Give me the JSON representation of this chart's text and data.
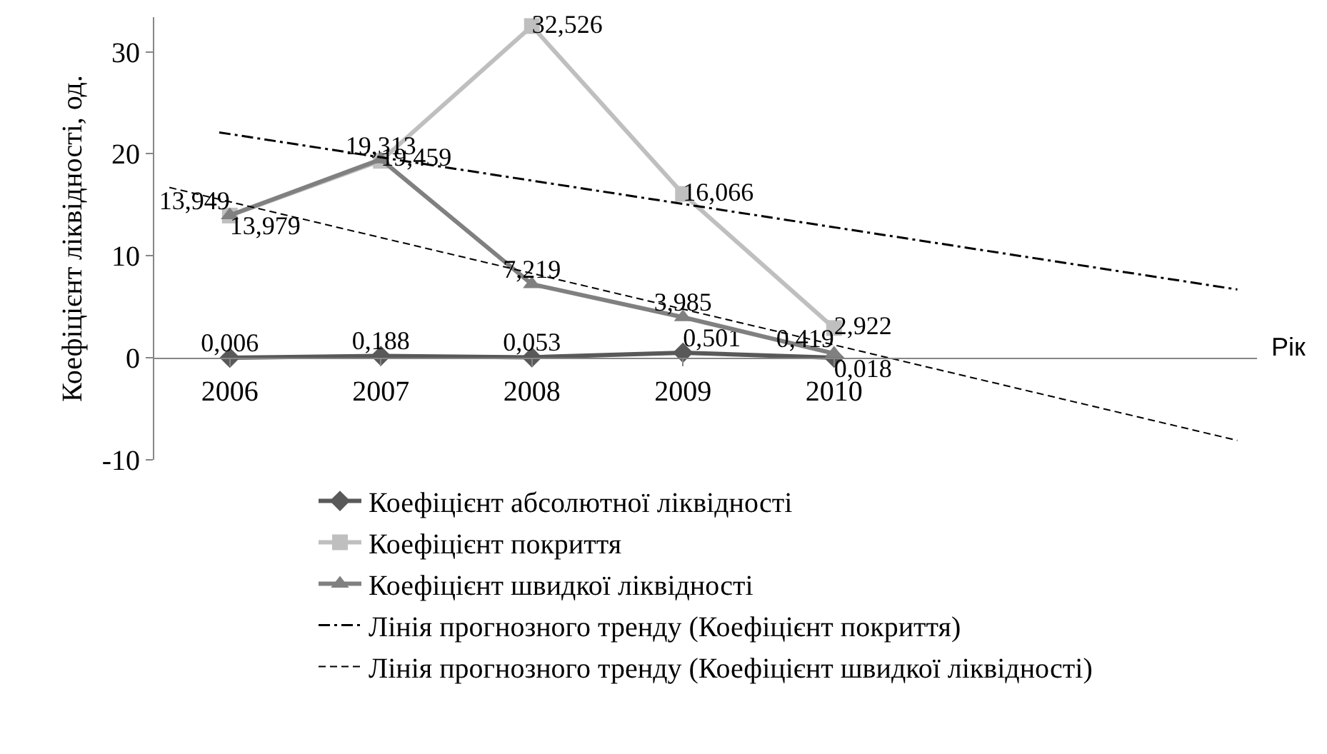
{
  "chart_data": {
    "type": "line",
    "ylabel": "Коефіцієнт ліквідності, од.",
    "xlabel": "Рік",
    "xlim": [
      2005.5,
      2012.8
    ],
    "xticks": [
      2006,
      2007,
      2008,
      2009,
      2010
    ],
    "ylim": [
      -10,
      33.4
    ],
    "yticks": [
      -10,
      0,
      10,
      20,
      30
    ],
    "grid": false,
    "legend": "bottom",
    "series": [
      {
        "name": "Коефіцієнт абсолютної ліквідності",
        "color": "#595959",
        "marker": "diamond",
        "line_style": "solid",
        "x": [
          2006,
          2007,
          2008,
          2009,
          2010
        ],
        "values": [
          0.006,
          0.188,
          0.053,
          0.501,
          0.018
        ],
        "value_labels": [
          "0,006",
          "0,188",
          "0,053",
          "0,501",
          "0,018"
        ]
      },
      {
        "name": "Коефіцієнт покриття",
        "color": "#bfbfbf",
        "marker": "square",
        "line_style": "solid",
        "x": [
          2006,
          2007,
          2008,
          2009,
          2010
        ],
        "values": [
          13.949,
          19.313,
          32.526,
          16.066,
          2.922
        ],
        "value_labels": [
          "13,949",
          "19,313",
          "32,526",
          "16,066",
          "2,922"
        ]
      },
      {
        "name": "Коефіцієнт швидкої ліквідності",
        "color": "#808080",
        "marker": "triangle",
        "line_style": "solid",
        "x": [
          2006,
          2007,
          2008,
          2009,
          2010
        ],
        "values": [
          13.979,
          19.459,
          7.219,
          3.985,
          0.419
        ],
        "value_labels": [
          "13,979",
          "19,459",
          "7,219",
          "3,985",
          "0,419"
        ]
      },
      {
        "name": "Лінія прогнозного тренду (Коефіцієнт покриття)",
        "color": "#000000",
        "marker": "none",
        "line_style": "dashdot",
        "x": [
          2005.93,
          2012.67
        ],
        "values": [
          22.1,
          6.7
        ]
      },
      {
        "name": "Лінія прогнозного тренду (Коефіцієнт швидкої ліквідності)",
        "color": "#000000",
        "marker": "none",
        "line_style": "dashed",
        "x": [
          2005.6,
          2012.67
        ],
        "values": [
          16.7,
          -8.1
        ]
      }
    ]
  }
}
